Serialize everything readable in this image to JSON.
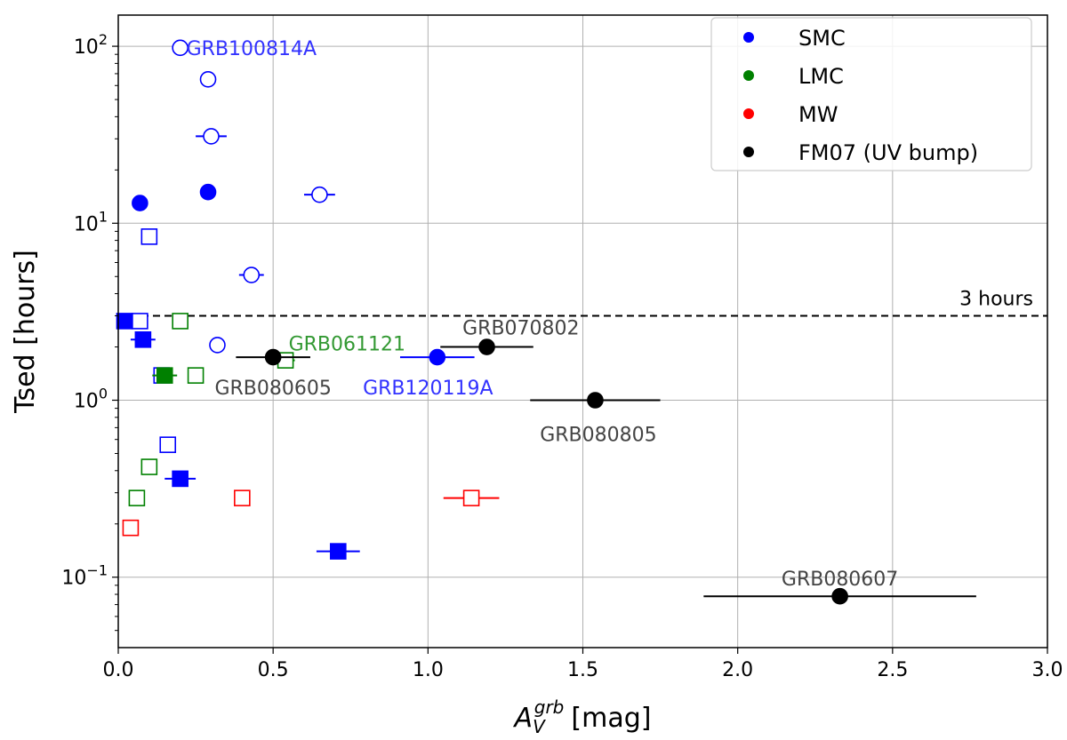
{
  "chart_data": {
    "type": "scatter",
    "xlabel": "A_V^grb [mag]",
    "xlabel_main": "A",
    "xlabel_sub": "V",
    "xlabel_sup": "grb",
    "xlabel_unit": "[mag]",
    "ylabel": "Tsed [hours]",
    "xlim": [
      0.0,
      3.0
    ],
    "ylim": [
      0.04,
      150
    ],
    "yscale": "log",
    "grid": true,
    "legend_position": "top-right",
    "x_ticks": [
      "0.0",
      "0.5",
      "1.0",
      "1.5",
      "2.0",
      "2.5",
      "3.0"
    ],
    "y_ticks": [
      {
        "value": 0.1,
        "base": "10",
        "exp": "−1"
      },
      {
        "value": 1,
        "base": "10",
        "exp": "0"
      },
      {
        "value": 10,
        "base": "10",
        "exp": "1"
      },
      {
        "value": 100,
        "base": "10",
        "exp": "2"
      }
    ],
    "reference_line": {
      "y": 3,
      "label": "3 hours",
      "style": "dashed",
      "color": "#000000"
    },
    "legend": [
      {
        "name": "SMC",
        "color": "#0000ff"
      },
      {
        "name": "LMC",
        "color": "#008000"
      },
      {
        "name": "MW",
        "color": "#ff0000"
      },
      {
        "name": "FM07 (UV bump)",
        "color": "#000000"
      }
    ],
    "colors": {
      "SMC": "#0000ff",
      "LMC": "#008000",
      "MW": "#ff0000",
      "FM07": "#000000"
    },
    "points": [
      {
        "group": "SMC",
        "marker": "circle",
        "filled": false,
        "x": 0.2,
        "y": 98,
        "xerr": 0.0
      },
      {
        "group": "SMC",
        "marker": "circle",
        "filled": false,
        "x": 0.29,
        "y": 65,
        "xerr": 0.0
      },
      {
        "group": "SMC",
        "marker": "circle",
        "filled": false,
        "x": 0.3,
        "y": 31,
        "xerr": 0.05
      },
      {
        "group": "SMC",
        "marker": "circle",
        "filled": true,
        "x": 0.07,
        "y": 13,
        "xerr": 0.0
      },
      {
        "group": "SMC",
        "marker": "circle",
        "filled": true,
        "x": 0.29,
        "y": 15,
        "xerr": 0.0
      },
      {
        "group": "SMC",
        "marker": "circle",
        "filled": false,
        "x": 0.65,
        "y": 14.5,
        "xerr": 0.05
      },
      {
        "group": "SMC",
        "marker": "square",
        "filled": false,
        "x": 0.1,
        "y": 8.4,
        "xerr": 0.0
      },
      {
        "group": "SMC",
        "marker": "circle",
        "filled": false,
        "x": 0.43,
        "y": 5.1,
        "xerr": 0.04
      },
      {
        "group": "SMC",
        "marker": "square",
        "filled": true,
        "x": 0.02,
        "y": 2.8,
        "xerr": 0.0
      },
      {
        "group": "SMC",
        "marker": "square",
        "filled": false,
        "x": 0.07,
        "y": 2.8,
        "xerr": 0.0
      },
      {
        "group": "SMC",
        "marker": "square",
        "filled": true,
        "x": 0.08,
        "y": 2.2,
        "xerr": 0.04
      },
      {
        "group": "SMC",
        "marker": "circle",
        "filled": false,
        "x": 0.32,
        "y": 2.05,
        "xerr": 0.0
      },
      {
        "group": "SMC",
        "marker": "circle",
        "filled": true,
        "x": 1.03,
        "y": 1.75,
        "xerr": 0.12
      },
      {
        "group": "SMC",
        "marker": "square",
        "filled": false,
        "x": 0.14,
        "y": 1.38,
        "xerr": 0.0
      },
      {
        "group": "SMC",
        "marker": "square",
        "filled": false,
        "x": 0.16,
        "y": 0.56,
        "xerr": 0.0
      },
      {
        "group": "SMC",
        "marker": "square",
        "filled": true,
        "x": 0.2,
        "y": 0.36,
        "xerr": 0.05
      },
      {
        "group": "SMC",
        "marker": "square",
        "filled": true,
        "x": 0.71,
        "y": 0.14,
        "xerr": 0.07
      },
      {
        "group": "LMC",
        "marker": "square",
        "filled": false,
        "x": 0.2,
        "y": 2.8,
        "xerr": 0.0
      },
      {
        "group": "LMC",
        "marker": "square",
        "filled": true,
        "x": 0.15,
        "y": 1.38,
        "xerr": 0.04
      },
      {
        "group": "LMC",
        "marker": "square",
        "filled": false,
        "x": 0.25,
        "y": 1.38,
        "xerr": 0.0
      },
      {
        "group": "LMC",
        "marker": "square",
        "filled": false,
        "x": 0.54,
        "y": 1.68,
        "xerr": 0.03
      },
      {
        "group": "LMC",
        "marker": "square",
        "filled": false,
        "x": 0.1,
        "y": 0.42,
        "xerr": 0.0
      },
      {
        "group": "LMC",
        "marker": "square",
        "filled": false,
        "x": 0.06,
        "y": 0.28,
        "xerr": 0.0
      },
      {
        "group": "MW",
        "marker": "square",
        "filled": false,
        "x": 0.04,
        "y": 0.19,
        "xerr": 0.0
      },
      {
        "group": "MW",
        "marker": "square",
        "filled": false,
        "x": 0.4,
        "y": 0.28,
        "xerr": 0.0
      },
      {
        "group": "MW",
        "marker": "square",
        "filled": false,
        "x": 1.14,
        "y": 0.28,
        "xerr": 0.09
      },
      {
        "group": "FM07",
        "marker": "circle",
        "filled": true,
        "x": 0.5,
        "y": 1.75,
        "xerr": 0.12
      },
      {
        "group": "FM07",
        "marker": "circle",
        "filled": true,
        "x": 1.19,
        "y": 2.0,
        "xerr": 0.15
      },
      {
        "group": "FM07",
        "marker": "circle",
        "filled": true,
        "x": 1.54,
        "y": 1.0,
        "xerr": 0.21
      },
      {
        "group": "FM07",
        "marker": "circle",
        "filled": true,
        "x": 2.33,
        "y": 0.078,
        "xerr": 0.44
      }
    ],
    "annotations": [
      {
        "text": "GRB100814A",
        "x": 0.22,
        "y": 98,
        "anchor": "start",
        "dy": 0,
        "color": "#3333ff"
      },
      {
        "text": "GRB061121",
        "x": 0.55,
        "y": 2.1,
        "anchor": "start",
        "dy": 0,
        "color": "#339933"
      },
      {
        "text": "GRB080605",
        "x": 0.5,
        "y": 1.75,
        "anchor": "middle",
        "dy": 34,
        "color": "#444444"
      },
      {
        "text": "GRB070802",
        "x": 1.3,
        "y": 2.0,
        "anchor": "middle",
        "dy": -22,
        "color": "#444444"
      },
      {
        "text": "GRB120119A",
        "x": 1.0,
        "y": 1.75,
        "anchor": "middle",
        "dy": 34,
        "color": "#3333ff"
      },
      {
        "text": "GRB080805",
        "x": 1.55,
        "y": 1.0,
        "anchor": "middle",
        "dy": 38,
        "color": "#444444"
      },
      {
        "text": "GRB080607",
        "x": 2.33,
        "y": 0.078,
        "anchor": "middle",
        "dy": -20,
        "color": "#444444"
      }
    ]
  }
}
